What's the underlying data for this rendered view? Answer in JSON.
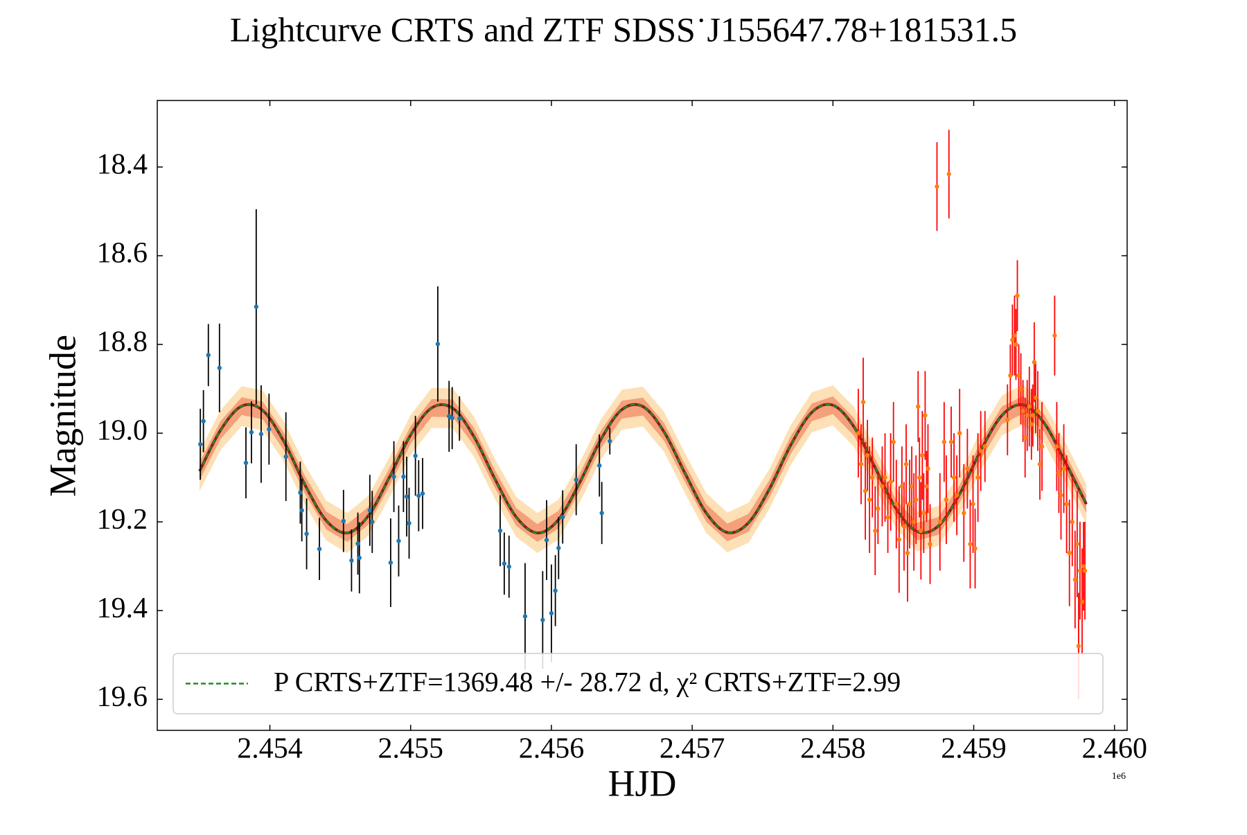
{
  "chart_data": {
    "type": "scatter",
    "title": "Lightcurve CRTS and ZTF SDSS˙J155647.78+181531.5",
    "xlabel": "HJD",
    "ylabel": "Magnitude",
    "x_offset_label": "1e6",
    "xlim": [
      2453200,
      2460090
    ],
    "ylim": [
      19.67,
      18.25
    ],
    "xticks": [
      {
        "value": 2454000,
        "label": "2.454"
      },
      {
        "value": 2455000,
        "label": "2.455"
      },
      {
        "value": 2456000,
        "label": "2.456"
      },
      {
        "value": 2457000,
        "label": "2.457"
      },
      {
        "value": 2458000,
        "label": "2.458"
      },
      {
        "value": 2459000,
        "label": "2.459"
      },
      {
        "value": 2460000,
        "label": "2.460"
      }
    ],
    "yticks": [
      18.4,
      18.6,
      18.8,
      {
        "value": 19,
        "label": "19.0"
      },
      19.2,
      19.4,
      19.6
    ],
    "legend": "lower center",
    "series": [
      {
        "color": "#1f77b4",
        "ecolor": "#000000",
        "x": [
          2453506,
          2453528,
          2453563,
          2453642,
          2453830,
          2453869,
          2453903,
          2453938,
          2453994,
          2454114,
          2454216,
          2454227,
          2454261,
          2454352,
          2454523,
          2454580,
          2454625,
          2454636,
          2454710,
          2454727,
          2454858,
          2454881,
          2454915,
          2454949,
          2454972,
          2454989,
          2455034,
          2455057,
          2455085,
          2455193,
          2455273,
          2455295,
          2455347,
          2455636,
          2455665,
          2455699,
          2455813,
          2455938,
          2455966,
          2456000,
          2456028,
          2456051,
          2456080,
          2456176,
          2456341,
          2456358,
          2456415
        ],
        "values": [
          19.025,
          18.973,
          18.824,
          18.853,
          19.067,
          18.998,
          18.715,
          19.002,
          18.991,
          19.053,
          19.134,
          19.174,
          19.227,
          19.261,
          19.198,
          19.287,
          19.249,
          19.281,
          19.174,
          19.2,
          19.292,
          19.098,
          19.243,
          19.098,
          19.143,
          19.203,
          19.051,
          19.141,
          19.136,
          18.799,
          18.962,
          18.966,
          18.967,
          19.22,
          19.294,
          19.301,
          19.413,
          19.421,
          19.241,
          19.406,
          19.355,
          19.259,
          19.189,
          19.105,
          19.073,
          19.18,
          19.018
        ],
        "errors": [
          0.08,
          0.07,
          0.07,
          0.1,
          0.08,
          0.07,
          0.22,
          0.11,
          0.08,
          0.1,
          0.07,
          0.07,
          0.08,
          0.07,
          0.07,
          0.07,
          0.07,
          0.08,
          0.08,
          0.07,
          0.1,
          0.08,
          0.08,
          0.08,
          0.09,
          0.08,
          0.09,
          0.08,
          0.08,
          0.13,
          0.08,
          0.07,
          0.05,
          0.08,
          0.07,
          0.07,
          0.12,
          0.11,
          0.09,
          0.11,
          0.08,
          0.07,
          0.06,
          0.08,
          0.07,
          0.07,
          0.03
        ]
      },
      {
        "color": "#ff7f0e",
        "ecolor": "#ff0000",
        "x": [
          2458180,
          2458200,
          2458215,
          2458230,
          2458245,
          2458260,
          2458280,
          2458300,
          2458320,
          2458350,
          2458370,
          2458390,
          2458410,
          2458430,
          2458450,
          2458470,
          2458490,
          2458505,
          2458520,
          2458530,
          2458545,
          2458560,
          2458575,
          2458590,
          2458605,
          2458615,
          2458625,
          2458635,
          2458645,
          2458655,
          2458665,
          2458675,
          2458690,
          2458739,
          2458760,
          2458790,
          2458805,
          2458824,
          2458840,
          2458860,
          2458880,
          2458900,
          2458930,
          2458955,
          2458975,
          2458995,
          2459010,
          2459030,
          2459050,
          2459080,
          2459240,
          2459260,
          2459275,
          2459290,
          2459300,
          2459310,
          2459320,
          2459335,
          2459350,
          2459365,
          2459380,
          2459395,
          2459410,
          2459420,
          2459430,
          2459440,
          2459455,
          2459470,
          2459485,
          2459575,
          2459590,
          2459605,
          2459620,
          2459640,
          2459660,
          2459680,
          2459700,
          2459720,
          2459735,
          2459745,
          2459755,
          2459770,
          2459780,
          2459790
        ],
        "values": [
          19.0,
          19.07,
          18.93,
          19.13,
          19.05,
          19.15,
          19.1,
          19.22,
          19.17,
          19.12,
          19.1,
          19.19,
          19.11,
          19.02,
          19.16,
          19.24,
          19.12,
          19.21,
          19.07,
          19.27,
          19.16,
          19.12,
          19.2,
          19.15,
          18.94,
          19.1,
          19.22,
          19.05,
          19.18,
          18.96,
          19.12,
          19.08,
          19.25,
          18.444,
          19.2,
          19.02,
          19.15,
          18.416,
          19.02,
          19.1,
          19.14,
          19.0,
          19.18,
          19.08,
          19.25,
          19.16,
          19.26,
          19.1,
          19.04,
          19.03,
          18.97,
          18.87,
          18.79,
          18.78,
          18.8,
          18.69,
          18.87,
          18.9,
          18.95,
          19.01,
          18.96,
          18.94,
          18.98,
          18.96,
          18.84,
          18.92,
          18.95,
          19.07,
          19.03,
          18.78,
          19.03,
          19.09,
          19.14,
          19.08,
          19.16,
          19.27,
          19.2,
          19.33,
          19.25,
          19.48,
          19.31,
          19.38,
          19.3,
          19.31
        ],
        "errors": [
          0.1,
          0.09,
          0.1,
          0.11,
          0.08,
          0.12,
          0.09,
          0.1,
          0.08,
          0.09,
          0.1,
          0.08,
          0.11,
          0.09,
          0.1,
          0.12,
          0.09,
          0.1,
          0.09,
          0.11,
          0.1,
          0.09,
          0.11,
          0.1,
          0.08,
          0.09,
          0.11,
          0.1,
          0.09,
          0.1,
          0.08,
          0.1,
          0.09,
          0.1,
          0.11,
          0.09,
          0.1,
          0.1,
          0.08,
          0.1,
          0.09,
          0.1,
          0.11,
          0.09,
          0.1,
          0.11,
          0.09,
          0.1,
          0.09,
          0.08,
          0.08,
          0.07,
          0.08,
          0.09,
          0.08,
          0.08,
          0.07,
          0.08,
          0.07,
          0.09,
          0.08,
          0.09,
          0.08,
          0.07,
          0.09,
          0.08,
          0.09,
          0.08,
          0.1,
          0.09,
          0.1,
          0.09,
          0.1,
          0.1,
          0.11,
          0.12,
          0.1,
          0.11,
          0.12,
          0.12,
          0.11,
          0.12,
          0.1,
          0.11
        ]
      }
    ],
    "fit": {
      "name": "P CRTS+ZTF=1369.48 +/- 28.72 d, χ² CRTS+ZTF=2.99",
      "color": "#228b22",
      "linestyle": "dashed",
      "x": [
        2453500,
        2453650,
        2453800,
        2453950,
        2454100,
        2454250,
        2454400,
        2454550,
        2454700,
        2454850,
        2455000,
        2455150,
        2455300,
        2455450,
        2455600,
        2455750,
        2455900,
        2456050,
        2456200,
        2456350,
        2456500,
        2456650,
        2456800,
        2456950,
        2457100,
        2457250,
        2457400,
        2457550,
        2457700,
        2457850,
        2458000,
        2458150,
        2458300,
        2458450,
        2458600,
        2458750,
        2458900,
        2459050,
        2459200,
        2459350,
        2459500,
        2459650,
        2459800
      ],
      "values": [
        19.086,
        18.993,
        18.939,
        18.949,
        19.019,
        19.117,
        19.197,
        19.225,
        19.186,
        19.099,
        19.004,
        18.943,
        18.944,
        19.008,
        19.104,
        19.189,
        19.225,
        19.195,
        19.112,
        19.015,
        18.947,
        18.94,
        18.997,
        19.091,
        19.18,
        19.224,
        19.202,
        19.125,
        19.027,
        18.953,
        18.937,
        18.986,
        19.078,
        19.171,
        19.222,
        19.209,
        19.137,
        19.039,
        18.96,
        18.936,
        18.977,
        19.065,
        19.16
      ],
      "bands": [
        {
          "color": "#fde0b5",
          "width": 0.045
        },
        {
          "color": "#f4a07a",
          "width": 0.02
        }
      ]
    }
  }
}
